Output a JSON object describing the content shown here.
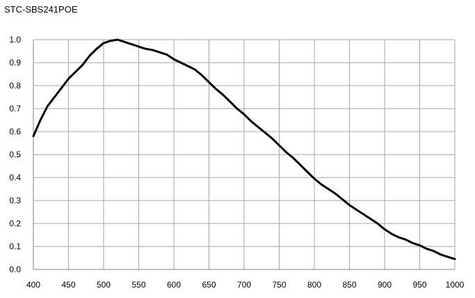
{
  "chart_data": {
    "type": "line",
    "title": "STC-SBS241POE",
    "xlabel": "",
    "ylabel": "",
    "xlim": [
      400,
      1000
    ],
    "ylim": [
      0,
      1.0
    ],
    "x_ticks": [
      "400",
      "450",
      "500",
      "550",
      "600",
      "650",
      "700",
      "750",
      "800",
      "850",
      "900",
      "950",
      "1000"
    ],
    "y_ticks": [
      "0.0",
      "0.1",
      "0.2",
      "0.3",
      "0.4",
      "0.5",
      "0.6",
      "0.7",
      "0.8",
      "0.9",
      "1.0"
    ],
    "grid": true,
    "legend": "none",
    "line_color": "#000000",
    "grid_color": "#a6a6a6",
    "series": [
      {
        "x": [
          400,
          410,
          420,
          430,
          440,
          450,
          460,
          470,
          480,
          490,
          500,
          510,
          520,
          530,
          540,
          550,
          560,
          570,
          580,
          590,
          600,
          610,
          620,
          630,
          640,
          650,
          660,
          670,
          680,
          690,
          700,
          710,
          720,
          730,
          740,
          750,
          760,
          770,
          780,
          790,
          800,
          810,
          820,
          830,
          840,
          850,
          860,
          870,
          880,
          890,
          900,
          910,
          920,
          930,
          940,
          950,
          960,
          970,
          980,
          990,
          1000
        ],
        "values": [
          0.58,
          0.65,
          0.71,
          0.75,
          0.79,
          0.83,
          0.86,
          0.89,
          0.93,
          0.96,
          0.985,
          0.995,
          1.0,
          0.99,
          0.98,
          0.97,
          0.96,
          0.955,
          0.945,
          0.935,
          0.915,
          0.9,
          0.885,
          0.87,
          0.845,
          0.815,
          0.785,
          0.76,
          0.73,
          0.7,
          0.675,
          0.645,
          0.62,
          0.595,
          0.57,
          0.54,
          0.51,
          0.485,
          0.455,
          0.425,
          0.395,
          0.37,
          0.35,
          0.33,
          0.305,
          0.28,
          0.26,
          0.24,
          0.22,
          0.2,
          0.175,
          0.155,
          0.14,
          0.13,
          0.115,
          0.105,
          0.09,
          0.08,
          0.065,
          0.055,
          0.045
        ]
      }
    ]
  }
}
